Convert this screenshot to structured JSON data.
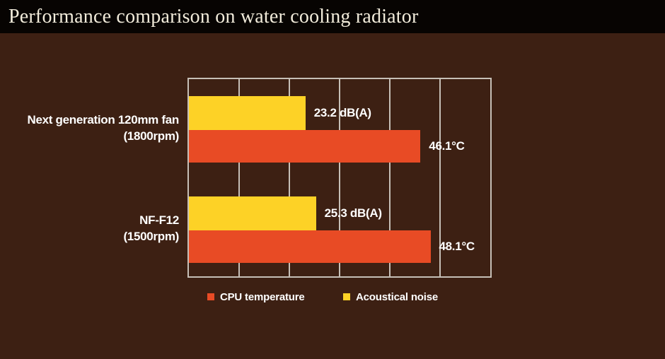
{
  "title_bar": {
    "title": "Performance comparison on water cooling radiator"
  },
  "chart_data": {
    "type": "bar",
    "orientation": "horizontal",
    "title": "Performance comparison on water cooling radiator",
    "categories": [
      "Next generation 120mm fan (1800rpm)",
      "NF-F12 (1500rpm)"
    ],
    "category_lines": [
      [
        "Next generation 120mm fan",
        "(1800rpm)"
      ],
      [
        "NF-F12",
        "(1500rpm)"
      ]
    ],
    "series": [
      {
        "name": "CPU temperature",
        "unit": "°C",
        "values": [
          46.1,
          48.1
        ],
        "labels": [
          "46.1°C",
          "48.1°C"
        ],
        "color": "#E84B25"
      },
      {
        "name": "Acoustical noise",
        "unit": "dB(A)",
        "values": [
          23.2,
          25.3
        ],
        "labels": [
          "23.2 dB(A)",
          "25.3 dB(A)"
        ],
        "color": "#FDD226"
      }
    ],
    "xlim": [
      0,
      60
    ],
    "gridline_interval": 10,
    "grid": true,
    "tick_labels_shown": false,
    "legend_position": "bottom",
    "colors": {
      "background": "#3D2013",
      "title_bar_background": "#070402",
      "title_text": "#F2ECDB",
      "gridline": "#C6BFB7",
      "label_text": "#FFFFFF"
    }
  },
  "legend": {
    "items": [
      {
        "label": "CPU temperature",
        "color": "#E84B25"
      },
      {
        "label": "Acoustical noise",
        "color": "#FDD226"
      }
    ]
  }
}
